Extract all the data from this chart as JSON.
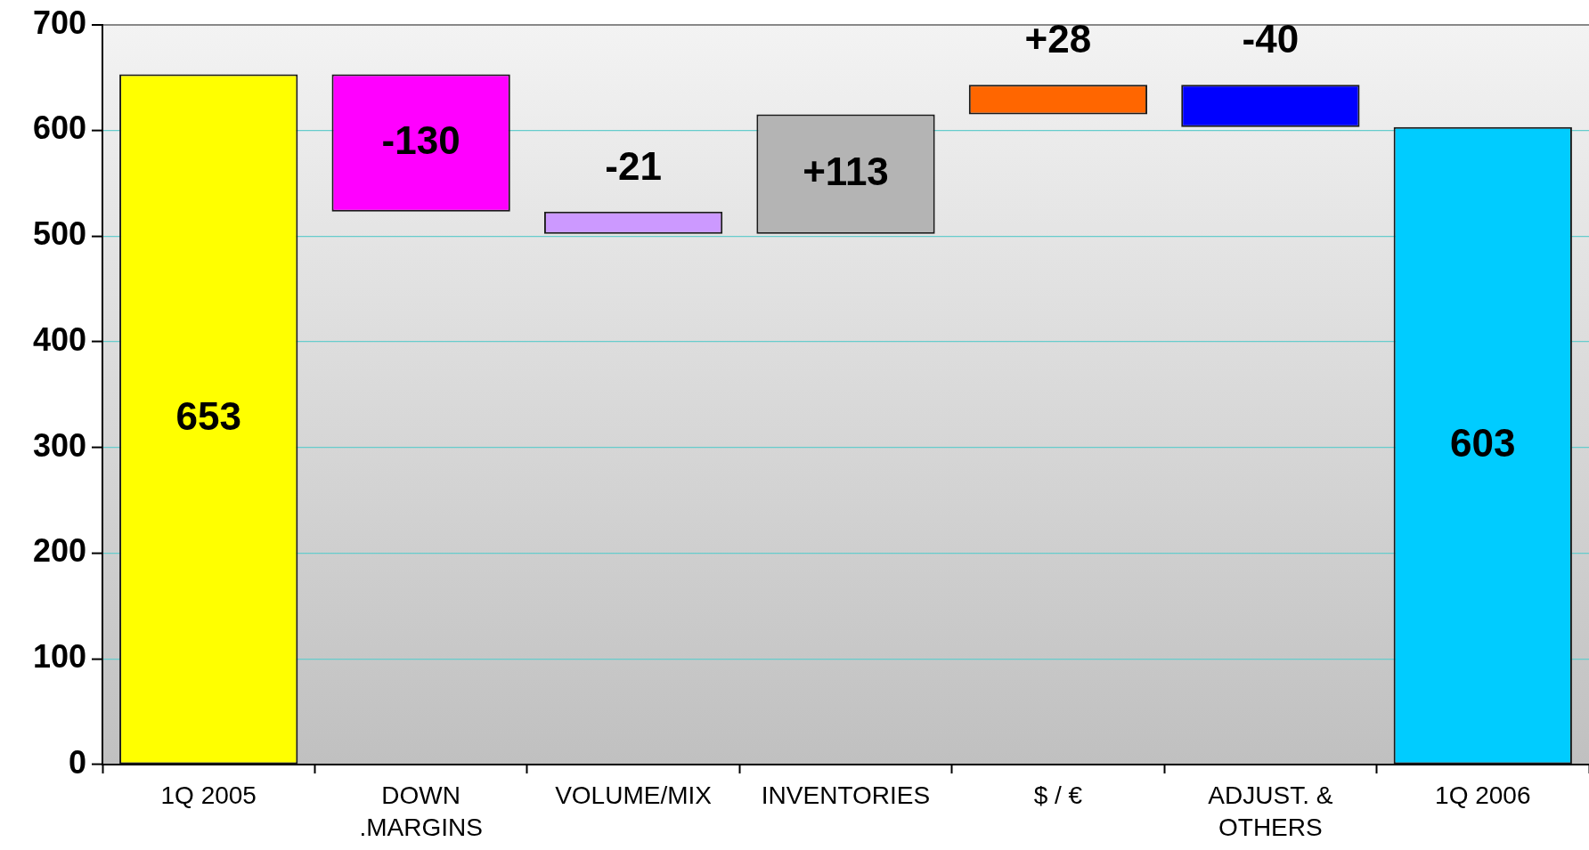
{
  "chart_data": {
    "type": "bar",
    "categories": [
      "1Q 2005",
      "DOWN\n.MARGINS",
      "VOLUME/MIX",
      "INVENTORIES",
      "$ / €",
      "ADJUST. &\nOTHERS",
      "1Q 2006"
    ],
    "values": [
      653,
      -130,
      -21,
      113,
      28,
      -40,
      603
    ],
    "base": [
      0,
      653,
      523,
      502,
      615,
      643,
      0
    ],
    "colors": [
      "#ffff00",
      "#ff00ff",
      "#cc99ff",
      "#b4b4b4",
      "#ff6600",
      "#0000ff",
      "#00ccff"
    ],
    "value_labels": [
      "653",
      "-130",
      "-21",
      "+113",
      "+28",
      "-40",
      "603"
    ],
    "ylim": [
      0,
      700
    ],
    "yticks": [
      0,
      100,
      200,
      300,
      400,
      500,
      600,
      700
    ],
    "grid": "y"
  }
}
